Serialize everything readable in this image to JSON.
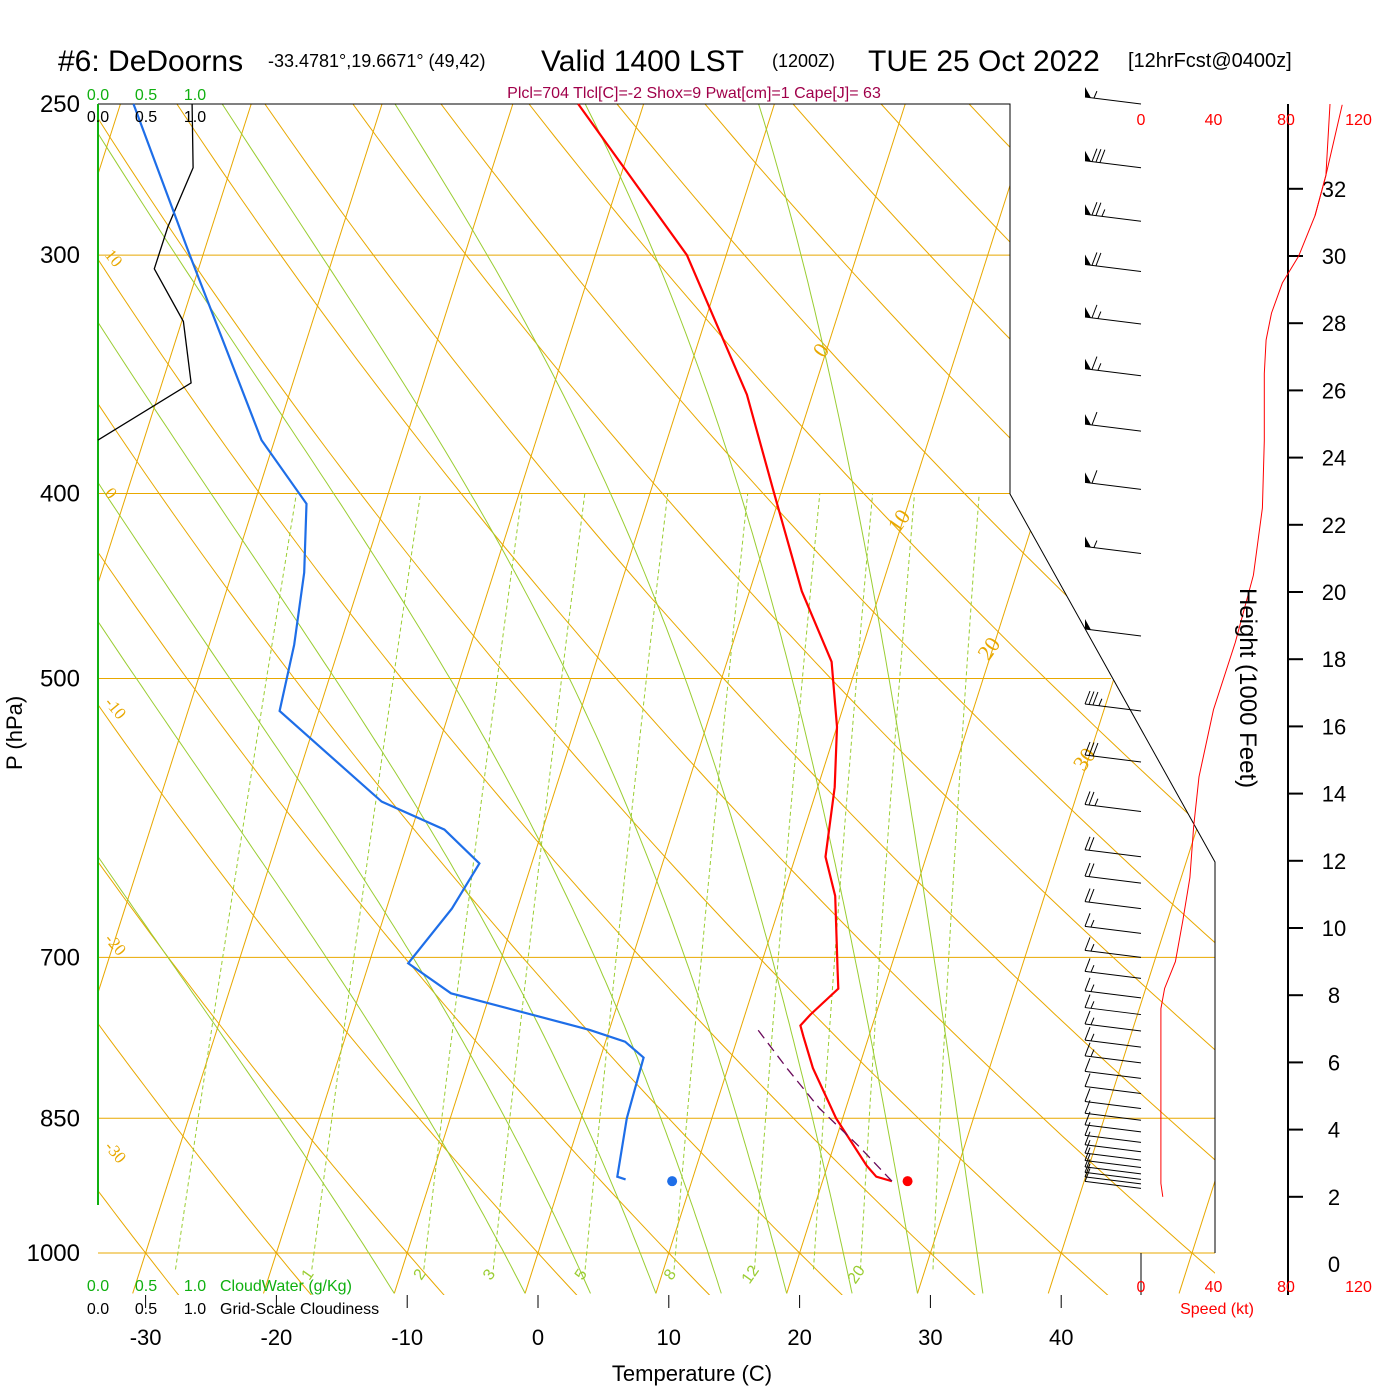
{
  "title": {
    "station": "#6: DeDoorns",
    "coords": "-33.4781°,19.6671° (49,42)",
    "valid": "Valid 1400 LST",
    "utc": "(1200Z)",
    "date": "TUE 25 Oct 2022",
    "forecast": "[12hrFcst@0400z]"
  },
  "indices": "Plcl=704 Tlcl[C]=-2 Shox=9 Pwat[cm]=1 Cape[J]= 63",
  "colors": {
    "temperature": "#ff0000",
    "dewpoint": "#1e6ee8",
    "isotherm": "#e8a800",
    "moist_adiabat": "#9acd32",
    "cloudwater_axis": "#10b010",
    "parcel": "#6a0a5a",
    "speed": "#ff0000"
  },
  "chart_data": {
    "type": "skew-t",
    "ylabel": "P (hPa)",
    "xlabel": "Temperature (C)",
    "right_label": "Height (1000 Feet)",
    "pressure_ticks": [
      "250",
      "300",
      "400",
      "500",
      "700",
      "850",
      "1000"
    ],
    "temp_ticks": [
      "-30",
      "-20",
      "-10",
      "0",
      "10",
      "20",
      "30",
      "40"
    ],
    "height_ticks": [
      "0",
      "2",
      "4",
      "6",
      "8",
      "10",
      "12",
      "14",
      "16",
      "18",
      "20",
      "22",
      "24",
      "26",
      "28",
      "30",
      "32"
    ],
    "speed_ticks": [
      "0",
      "40",
      "80",
      "120"
    ],
    "speed_label": "Speed (kt)",
    "cloudwater_ticks": [
      "0.0",
      "0.5",
      "1.0"
    ],
    "cloudwater_label": "CloudWater (g/Kg)",
    "cloudiness_ticks": [
      "0.0",
      "0.5",
      "1.0"
    ],
    "cloudiness_label": "Grid-Scale Cloudiness",
    "mixing_ratio_labels": [
      "1",
      "2",
      "3",
      "5",
      "8",
      "12",
      "20"
    ],
    "dry_adiabat_labels": [
      {
        "text": "10",
        "temp": -32.5,
        "p": 300
      },
      {
        "text": "0",
        "temp": -32.5,
        "p": 400
      },
      {
        "text": "-10",
        "temp": -32.0,
        "p": 515
      },
      {
        "text": "-20",
        "temp": -32.0,
        "p": 685
      },
      {
        "text": "-30",
        "temp": -32.0,
        "p": 880
      }
    ],
    "isotherm_labels": [
      {
        "text": "0",
        "temp": 0,
        "p": 340
      },
      {
        "text": "10",
        "temp": 10,
        "p": 420
      },
      {
        "text": "20",
        "temp": 20,
        "p": 490
      },
      {
        "text": "30",
        "temp": 30,
        "p": 560
      }
    ],
    "temperature_profile": [
      {
        "p": 917,
        "t": 25.3
      },
      {
        "p": 912,
        "t": 24.0
      },
      {
        "p": 900,
        "t": 23.0
      },
      {
        "p": 850,
        "t": 19.5
      },
      {
        "p": 800,
        "t": 16.5
      },
      {
        "p": 770,
        "t": 15.0
      },
      {
        "p": 760,
        "t": 14.5
      },
      {
        "p": 750,
        "t": 15.0
      },
      {
        "p": 727,
        "t": 16.5
      },
      {
        "p": 711,
        "t": 16.0
      },
      {
        "p": 650,
        "t": 14.0
      },
      {
        "p": 620,
        "t": 12.3
      },
      {
        "p": 570,
        "t": 11.3
      },
      {
        "p": 530,
        "t": 10.0
      },
      {
        "p": 490,
        "t": 8.0
      },
      {
        "p": 450,
        "t": 4.0
      },
      {
        "p": 400,
        "t": -0.5
      },
      {
        "p": 355,
        "t": -5.0
      },
      {
        "p": 300,
        "t": -13.0
      },
      {
        "p": 250,
        "t": -25.0
      }
    ],
    "dewpoint_profile": [
      {
        "p": 915,
        "t": 4.9
      },
      {
        "p": 912,
        "t": 4.2
      },
      {
        "p": 850,
        "t": 3.5
      },
      {
        "p": 790,
        "t": 3.3
      },
      {
        "p": 775,
        "t": 1.5
      },
      {
        "p": 764,
        "t": -1.5
      },
      {
        "p": 731,
        "t": -13.0
      },
      {
        "p": 705,
        "t": -17.0
      },
      {
        "p": 660,
        "t": -15.0
      },
      {
        "p": 625,
        "t": -14.0
      },
      {
        "p": 600,
        "t": -17.5
      },
      {
        "p": 580,
        "t": -23.0
      },
      {
        "p": 520,
        "t": -33.0
      },
      {
        "p": 480,
        "t": -33.5
      },
      {
        "p": 440,
        "t": -34.5
      },
      {
        "p": 405,
        "t": -36.0
      },
      {
        "p": 375,
        "t": -41.0
      },
      {
        "p": 300,
        "t": -51.0
      },
      {
        "p": 250,
        "t": -59.0
      }
    ],
    "parcel_path": [
      {
        "p": 917,
        "t": 25.3
      },
      {
        "p": 880,
        "t": 22.0
      },
      {
        "p": 840,
        "t": 18.0
      },
      {
        "p": 800,
        "t": 14.5
      },
      {
        "p": 760,
        "t": 11.0
      }
    ],
    "surface_temp_point": {
      "p": 917,
      "t": 26.5
    },
    "surface_dew_point": {
      "p": 917,
      "t": 8.5
    },
    "cloudiness_profile": [
      {
        "p": 250,
        "v": 0.97
      },
      {
        "p": 270,
        "v": 0.98
      },
      {
        "p": 290,
        "v": 0.72
      },
      {
        "p": 305,
        "v": 0.58
      },
      {
        "p": 325,
        "v": 0.88
      },
      {
        "p": 350,
        "v": 0.96
      },
      {
        "p": 375,
        "v": 0.0
      }
    ],
    "speed_profile": [
      {
        "h": 2.0,
        "kt": 12
      },
      {
        "h": 2.4,
        "kt": 11
      },
      {
        "h": 6.0,
        "kt": 11
      },
      {
        "h": 7.6,
        "kt": 11
      },
      {
        "h": 8.2,
        "kt": 13
      },
      {
        "h": 9.0,
        "kt": 19
      },
      {
        "h": 10.2,
        "kt": 23
      },
      {
        "h": 11.5,
        "kt": 27
      },
      {
        "h": 13.0,
        "kt": 29
      },
      {
        "h": 14.5,
        "kt": 32
      },
      {
        "h": 16.5,
        "kt": 40
      },
      {
        "h": 18.5,
        "kt": 52
      },
      {
        "h": 20.5,
        "kt": 62
      },
      {
        "h": 22.5,
        "kt": 67
      },
      {
        "h": 24.5,
        "kt": 68
      },
      {
        "h": 26.5,
        "kt": 68
      },
      {
        "h": 27.5,
        "kt": 69
      },
      {
        "h": 28.3,
        "kt": 72
      },
      {
        "h": 29.2,
        "kt": 78
      },
      {
        "h": 30.0,
        "kt": 87
      },
      {
        "h": 31.2,
        "kt": 96
      },
      {
        "h": 32.4,
        "kt": 102
      },
      {
        "h": 34.5,
        "kt": 111
      }
    ],
    "wind_barbs": [
      {
        "p": 250,
        "kt": 55
      },
      {
        "p": 270,
        "kt": 80
      },
      {
        "p": 288,
        "kt": 75
      },
      {
        "p": 306,
        "kt": 70
      },
      {
        "p": 326,
        "kt": 65
      },
      {
        "p": 347,
        "kt": 65
      },
      {
        "p": 371,
        "kt": 60
      },
      {
        "p": 398,
        "kt": 60
      },
      {
        "p": 430,
        "kt": 55
      },
      {
        "p": 475,
        "kt": 50
      },
      {
        "p": 520,
        "kt": 35
      },
      {
        "p": 553,
        "kt": 30
      },
      {
        "p": 587,
        "kt": 25
      },
      {
        "p": 620,
        "kt": 20
      },
      {
        "p": 640,
        "kt": 20
      },
      {
        "p": 660,
        "kt": 20
      },
      {
        "p": 680,
        "kt": 15
      },
      {
        "p": 700,
        "kt": 15
      },
      {
        "p": 718,
        "kt": 15
      },
      {
        "p": 735,
        "kt": 15
      },
      {
        "p": 750,
        "kt": 15
      },
      {
        "p": 765,
        "kt": 15
      },
      {
        "p": 780,
        "kt": 15
      },
      {
        "p": 795,
        "kt": 15
      },
      {
        "p": 810,
        "kt": 10
      },
      {
        "p": 825,
        "kt": 10
      },
      {
        "p": 840,
        "kt": 10
      },
      {
        "p": 852,
        "kt": 10
      },
      {
        "p": 864,
        "kt": 10
      },
      {
        "p": 875,
        "kt": 10
      },
      {
        "p": 885,
        "kt": 10
      },
      {
        "p": 894,
        "kt": 10
      },
      {
        "p": 902,
        "kt": 10
      },
      {
        "p": 909,
        "kt": 10
      },
      {
        "p": 915,
        "kt": 10
      },
      {
        "p": 920,
        "kt": 10
      },
      {
        "p": 925,
        "kt": 10
      }
    ]
  }
}
